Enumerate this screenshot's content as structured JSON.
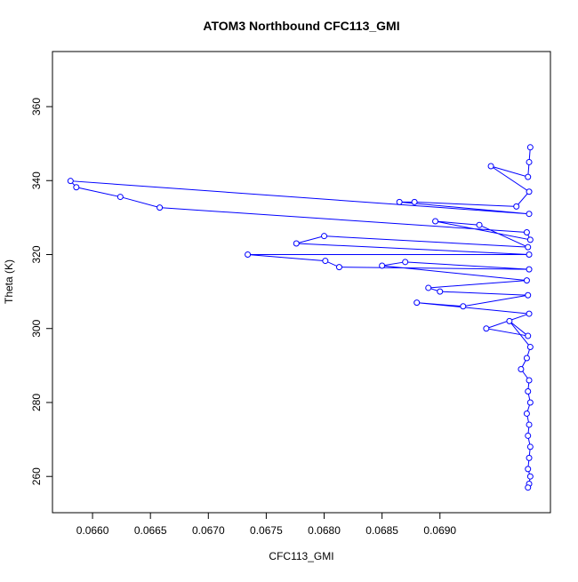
{
  "chart_data": {
    "type": "line",
    "title": "ATOM3 Northbound CFC113_GMI",
    "x_label": "CFC113_GMI",
    "y_label": "Theta (K)",
    "x": [
      0.06978,
      0.06977,
      0.06976,
      0.06944,
      0.06977,
      0.06966,
      0.06878,
      0.06865,
      0.06977,
      0.06581,
      0.06586,
      0.06624,
      0.06658,
      0.06975,
      0.06978,
      0.06896,
      0.06934,
      0.06976,
      0.068,
      0.06776,
      0.06977,
      0.06734,
      0.06801,
      0.06813,
      0.06977,
      0.0687,
      0.0685,
      0.06975,
      0.0689,
      0.069,
      0.06976,
      0.0692,
      0.0688,
      0.06977,
      0.0694,
      0.06976,
      0.0696,
      0.06978,
      0.06975,
      0.0697,
      0.06977,
      0.06976,
      0.06978,
      0.06975,
      0.06977,
      0.06976,
      0.06978,
      0.06977,
      0.06976,
      0.06978,
      0.06977,
      0.06976
    ],
    "series": [
      {
        "name": "CFC113_GMI",
        "color": "#0000ff",
        "values": [
          349,
          345,
          341,
          343.9,
          337,
          333,
          334.2,
          334.2,
          331,
          339.9,
          338.2,
          335.6,
          332.7,
          326,
          324,
          329,
          328,
          322,
          325,
          323,
          320,
          320,
          318.3,
          316.6,
          316,
          318,
          317,
          313,
          311,
          310,
          309,
          306,
          307,
          304,
          300,
          298,
          302,
          295,
          292,
          289,
          286,
          283,
          280,
          277,
          274,
          271,
          268,
          265,
          262,
          260,
          258,
          257
        ]
      }
    ],
    "xlim": [
      0.065654,
      0.069954
    ],
    "ylim": [
      250.2,
      374.9
    ],
    "xticks": [
      {
        "value": 0.066,
        "label": "0.0660"
      },
      {
        "value": 0.0665,
        "label": "0.0665"
      },
      {
        "value": 0.067,
        "label": "0.0670"
      },
      {
        "value": 0.0675,
        "label": "0.0675"
      },
      {
        "value": 0.068,
        "label": "0.0680"
      },
      {
        "value": 0.0685,
        "label": "0.0685"
      },
      {
        "value": 0.069,
        "label": "0.0690"
      }
    ],
    "yticks": [
      260,
      280,
      300,
      320,
      340,
      360
    ]
  }
}
